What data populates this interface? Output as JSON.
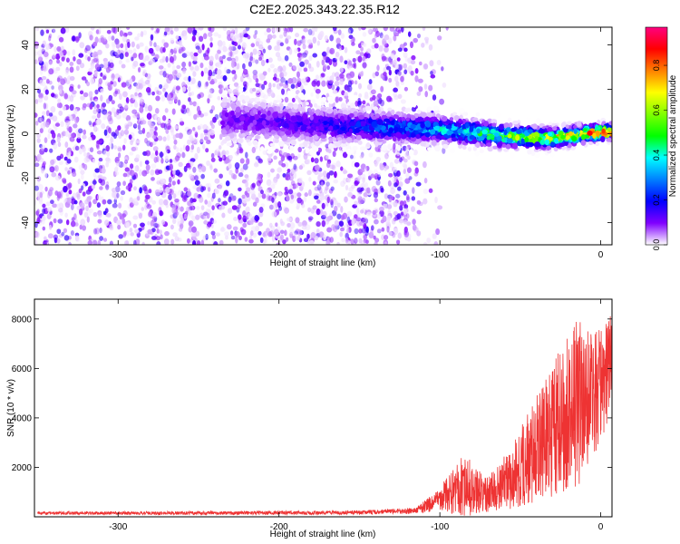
{
  "title": "C2E2.2025.343.22.35.R12",
  "chart_data": [
    {
      "type": "heatmap",
      "xlabel": "Height of straight line (km)",
      "ylabel": "Frequency (Hz)",
      "xlim": [
        -352,
        7
      ],
      "ylim": [
        -50,
        48
      ],
      "x_ticks": [
        -300,
        -200,
        -100,
        0
      ],
      "y_ticks": [
        40,
        20,
        0,
        -20,
        -40
      ],
      "colorbar": {
        "label": "Normalized spectral amplitude",
        "range": [
          0.0,
          0.97
        ],
        "ticks": [
          0.0,
          0.2,
          0.4,
          0.6,
          0.8
        ],
        "colormap": [
          "#ff0080",
          "#ff0000",
          "#ff8000",
          "#ffff00",
          "#80ff00",
          "#00ff00",
          "#00ffff",
          "#0080ff",
          "#0000ff",
          "#8000ff",
          "#ffffff"
        ]
      },
      "ridge": [
        {
          "x": -220,
          "y": 6
        },
        {
          "x": -180,
          "y": 4
        },
        {
          "x": -140,
          "y": 3
        },
        {
          "x": -100,
          "y": 2
        },
        {
          "x": -60,
          "y": -1
        },
        {
          "x": -30,
          "y": -2
        },
        {
          "x": -10,
          "y": 0
        },
        {
          "x": 5,
          "y": 1
        }
      ],
      "noise_extent_km": -115
    },
    {
      "type": "line",
      "xlabel": "Height of straight line (km)",
      "ylabel": "SNR (10 * v/v)",
      "xlim": [
        -352,
        7
      ],
      "ylim": [
        0,
        8800
      ],
      "x_ticks": [
        -300,
        -200,
        -100,
        0
      ],
      "y_ticks": [
        2000,
        4000,
        6000,
        8000
      ],
      "series": [
        {
          "color": "#ee3333",
          "envelope": [
            {
              "x": -350,
              "mean": 150,
              "spread": 60
            },
            {
              "x": -250,
              "mean": 150,
              "spread": 70
            },
            {
              "x": -150,
              "mean": 170,
              "spread": 80
            },
            {
              "x": -115,
              "mean": 250,
              "spread": 120
            },
            {
              "x": -100,
              "mean": 700,
              "spread": 500
            },
            {
              "x": -85,
              "mean": 1300,
              "spread": 1300
            },
            {
              "x": -70,
              "mean": 900,
              "spread": 700
            },
            {
              "x": -55,
              "mean": 1600,
              "spread": 1300
            },
            {
              "x": -40,
              "mean": 2800,
              "spread": 2200
            },
            {
              "x": -25,
              "mean": 3800,
              "spread": 3000
            },
            {
              "x": -15,
              "mean": 4600,
              "spread": 3500
            },
            {
              "x": -5,
              "mean": 4800,
              "spread": 2500
            },
            {
              "x": 7,
              "mean": 6200,
              "spread": 2000
            }
          ]
        }
      ]
    }
  ]
}
